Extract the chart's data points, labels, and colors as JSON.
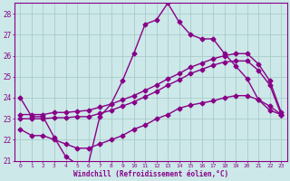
{
  "xlabel": "Windchill (Refroidissement éolien,°C)",
  "x_ticks": [
    0,
    1,
    2,
    3,
    4,
    5,
    6,
    7,
    8,
    9,
    10,
    11,
    12,
    13,
    14,
    15,
    16,
    17,
    18,
    19,
    20,
    21,
    22,
    23
  ],
  "ylim": [
    21.0,
    28.5
  ],
  "xlim": [
    -0.5,
    23.5
  ],
  "yticks": [
    21,
    22,
    23,
    24,
    25,
    26,
    27,
    28
  ],
  "background_color": "#cce8e8",
  "grid_color": "#aacccc",
  "line_color": "#880088",
  "lines": [
    {
      "x": [
        0,
        1,
        2,
        3,
        4,
        5,
        6,
        7,
        8,
        9,
        10,
        11,
        12,
        13,
        14,
        15,
        16,
        17,
        18,
        19,
        20,
        21,
        22,
        23
      ],
      "y": [
        24.0,
        23.1,
        23.1,
        22.1,
        21.2,
        20.85,
        20.85,
        23.1,
        23.7,
        24.8,
        26.1,
        27.5,
        27.7,
        28.5,
        27.6,
        27.0,
        26.8,
        26.8,
        26.1,
        25.5,
        24.9,
        23.9,
        23.4,
        23.2
      ],
      "marker": "D",
      "markersize": 2.5,
      "linewidth": 1.0
    },
    {
      "x": [
        0,
        1,
        2,
        3,
        4,
        5,
        6,
        7,
        8,
        9,
        10,
        11,
        12,
        13,
        14,
        15,
        16,
        17,
        18,
        19,
        20,
        21,
        22,
        23
      ],
      "y": [
        23.2,
        23.2,
        23.2,
        23.3,
        23.3,
        23.35,
        23.4,
        23.55,
        23.7,
        23.9,
        24.1,
        24.35,
        24.6,
        24.9,
        25.15,
        25.45,
        25.65,
        25.85,
        26.0,
        26.1,
        26.1,
        25.6,
        24.8,
        23.3
      ],
      "marker": "D",
      "markersize": 2.5,
      "linewidth": 1.0
    },
    {
      "x": [
        0,
        1,
        2,
        3,
        4,
        5,
        6,
        7,
        8,
        9,
        10,
        11,
        12,
        13,
        14,
        15,
        16,
        17,
        18,
        19,
        20,
        21,
        22,
        23
      ],
      "y": [
        23.0,
        23.0,
        23.0,
        23.05,
        23.05,
        23.1,
        23.1,
        23.25,
        23.4,
        23.6,
        23.8,
        24.05,
        24.3,
        24.6,
        24.85,
        25.15,
        25.35,
        25.55,
        25.7,
        25.75,
        25.75,
        25.3,
        24.6,
        23.2
      ],
      "marker": "D",
      "markersize": 2.5,
      "linewidth": 1.0
    },
    {
      "x": [
        0,
        1,
        2,
        3,
        4,
        5,
        6,
        7,
        8,
        9,
        10,
        11,
        12,
        13,
        14,
        15,
        16,
        17,
        18,
        19,
        20,
        21,
        22,
        23
      ],
      "y": [
        22.5,
        22.2,
        22.2,
        22.0,
        21.8,
        21.6,
        21.6,
        21.8,
        22.0,
        22.2,
        22.5,
        22.7,
        23.0,
        23.2,
        23.5,
        23.65,
        23.75,
        23.85,
        24.0,
        24.1,
        24.1,
        23.9,
        23.6,
        23.2
      ],
      "marker": "D",
      "markersize": 2.5,
      "linewidth": 1.0
    }
  ]
}
